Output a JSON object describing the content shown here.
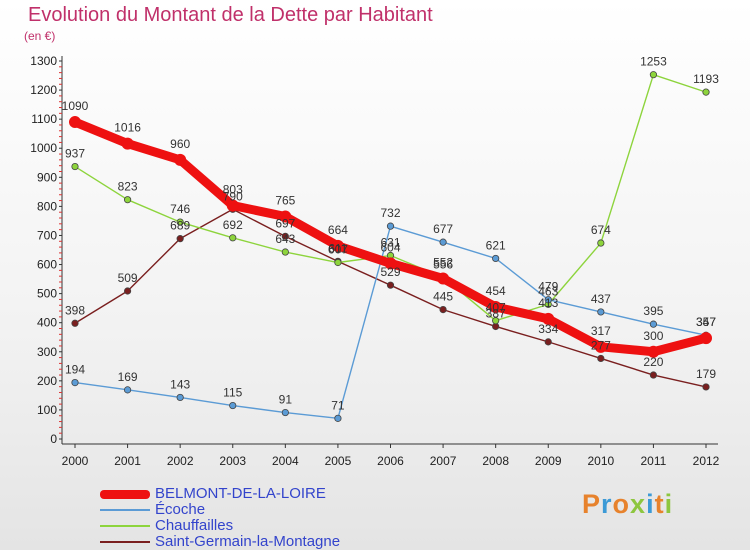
{
  "chart_data": {
    "type": "line",
    "title": "Evolution du Montant de la Dette par Habitant",
    "subtitle": "(en €)",
    "categories": [
      "2000",
      "2001",
      "2002",
      "2003",
      "2004",
      "2005",
      "2006",
      "2007",
      "2008",
      "2009",
      "2010",
      "2011",
      "2012"
    ],
    "ylim": [
      0,
      1300
    ],
    "yticks": [
      0,
      100,
      200,
      300,
      400,
      500,
      600,
      700,
      800,
      900,
      1000,
      1100,
      1200,
      1300
    ],
    "grid": "none",
    "legend_position": "bottom-left",
    "series": [
      {
        "name": "BELMONT-DE-LA-LOIRE",
        "color": "#ee1111",
        "values": [
          1090,
          1016,
          960,
          803,
          765,
          664,
          604,
          552,
          454,
          413,
          317,
          300,
          347
        ]
      },
      {
        "name": "Écoche",
        "color": "#5b9bd5",
        "values": [
          194,
          169,
          143,
          115,
          91,
          71,
          732,
          677,
          621,
          479,
          437,
          395,
          357
        ]
      },
      {
        "name": "Chauffailles",
        "color": "#8dd43c",
        "values": [
          937,
          823,
          746,
          692,
          643,
          607,
          631,
          556,
          407,
          463,
          674,
          1253,
          1193
        ]
      },
      {
        "name": "Saint-Germain-la-Montagne",
        "color": "#7a1f1f",
        "values": [
          398,
          509,
          689,
          790,
          697,
          611,
          529,
          445,
          387,
          334,
          277,
          220,
          179
        ]
      }
    ]
  },
  "logo": {
    "text": "Proxiti",
    "colors": [
      "#e7822c",
      "#3c9ad6",
      "#e7822c",
      "#8dc63f",
      "#3c9ad6",
      "#e7822c",
      "#8dc63f"
    ]
  }
}
